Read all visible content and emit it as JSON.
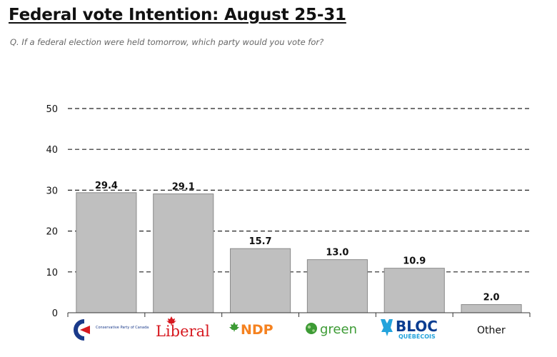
{
  "chart_data": {
    "type": "bar",
    "title": "Federal vote Intention: August 25-31",
    "subtitle": "Q. If a federal election were held tomorrow, which party would you vote for?",
    "categories": [
      "Conservative Party of Canada",
      "Liberal",
      "NDP",
      "green",
      "BLOC QUÉBÉCOIS",
      "Other"
    ],
    "values": [
      29.4,
      29.1,
      15.7,
      13.0,
      10.9,
      2.0
    ],
    "value_labels": [
      "29.4",
      "29.1",
      "15.7",
      "13.0",
      "10.9",
      "2.0"
    ],
    "yticks": [
      "0",
      "10",
      "20",
      "30",
      "40",
      "50"
    ],
    "ylim": [
      0,
      50
    ],
    "grid": "dashed horizontal",
    "bar_color": "#bfbfbf",
    "xlabel": "",
    "ylabel": ""
  },
  "logos": {
    "cpc": {
      "text": "Conservative Party of Canada",
      "icon": "cpc-c-logo-icon",
      "color": "#1a3a8a",
      "accent": "#d71920"
    },
    "liberal": {
      "text": "Liberal",
      "icon": "maple-leaf-icon",
      "color": "#d71920"
    },
    "ndp": {
      "text": "NDP",
      "icon": "ndp-leaf-icon",
      "color": "#f58220",
      "accent": "#3d9b35"
    },
    "green": {
      "text": "green",
      "icon": "green-globe-icon",
      "color": "#3d9b35"
    },
    "bloc": {
      "text": "BLOC",
      "subtext": "QUÉBÉCOIS",
      "icon": "bloc-fleur-icon",
      "color": "#0a3d91",
      "accent": "#23a3dc"
    },
    "other": {
      "text": "Other"
    }
  }
}
